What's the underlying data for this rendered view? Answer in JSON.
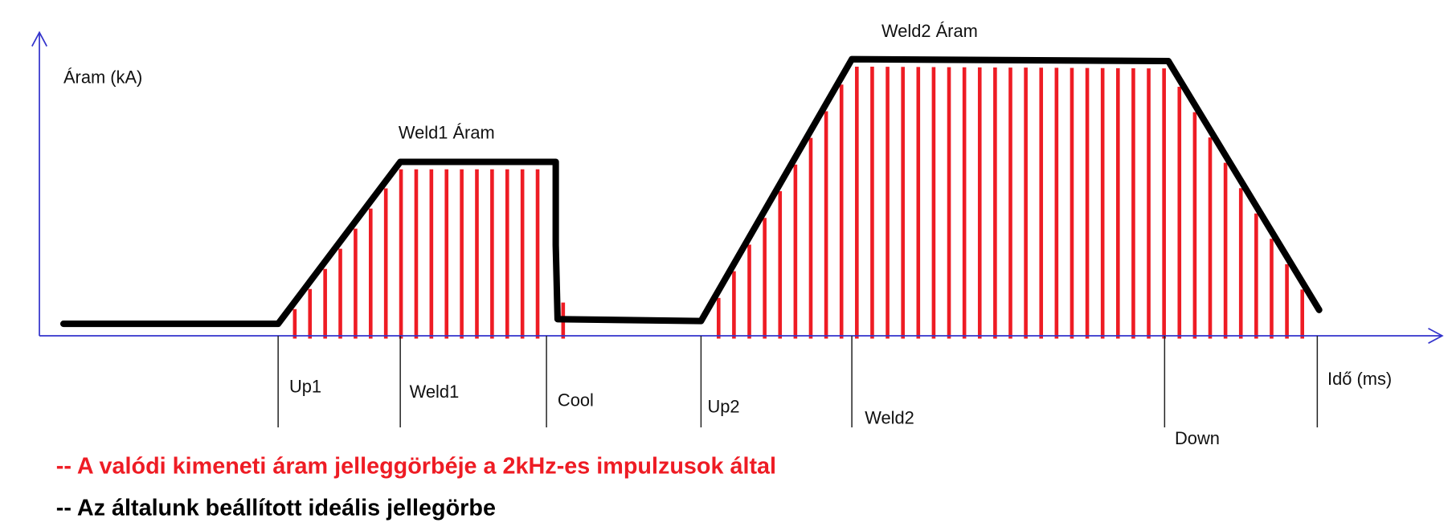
{
  "axes": {
    "y_label": "Áram (kA)",
    "x_label": "Idő (ms)"
  },
  "levels": {
    "weld1": "Weld1 Áram",
    "weld2": "Weld2 Áram"
  },
  "phases": [
    "Up1",
    "Weld1",
    "Cool",
    "Up2",
    "Weld2",
    "Down"
  ],
  "legend": [
    "-- A valódi kimeneti áram jelleggörbéje a 2kHz-es impulzusok által",
    "-- Az általunk beállított ideális jellegörbe"
  ]
}
